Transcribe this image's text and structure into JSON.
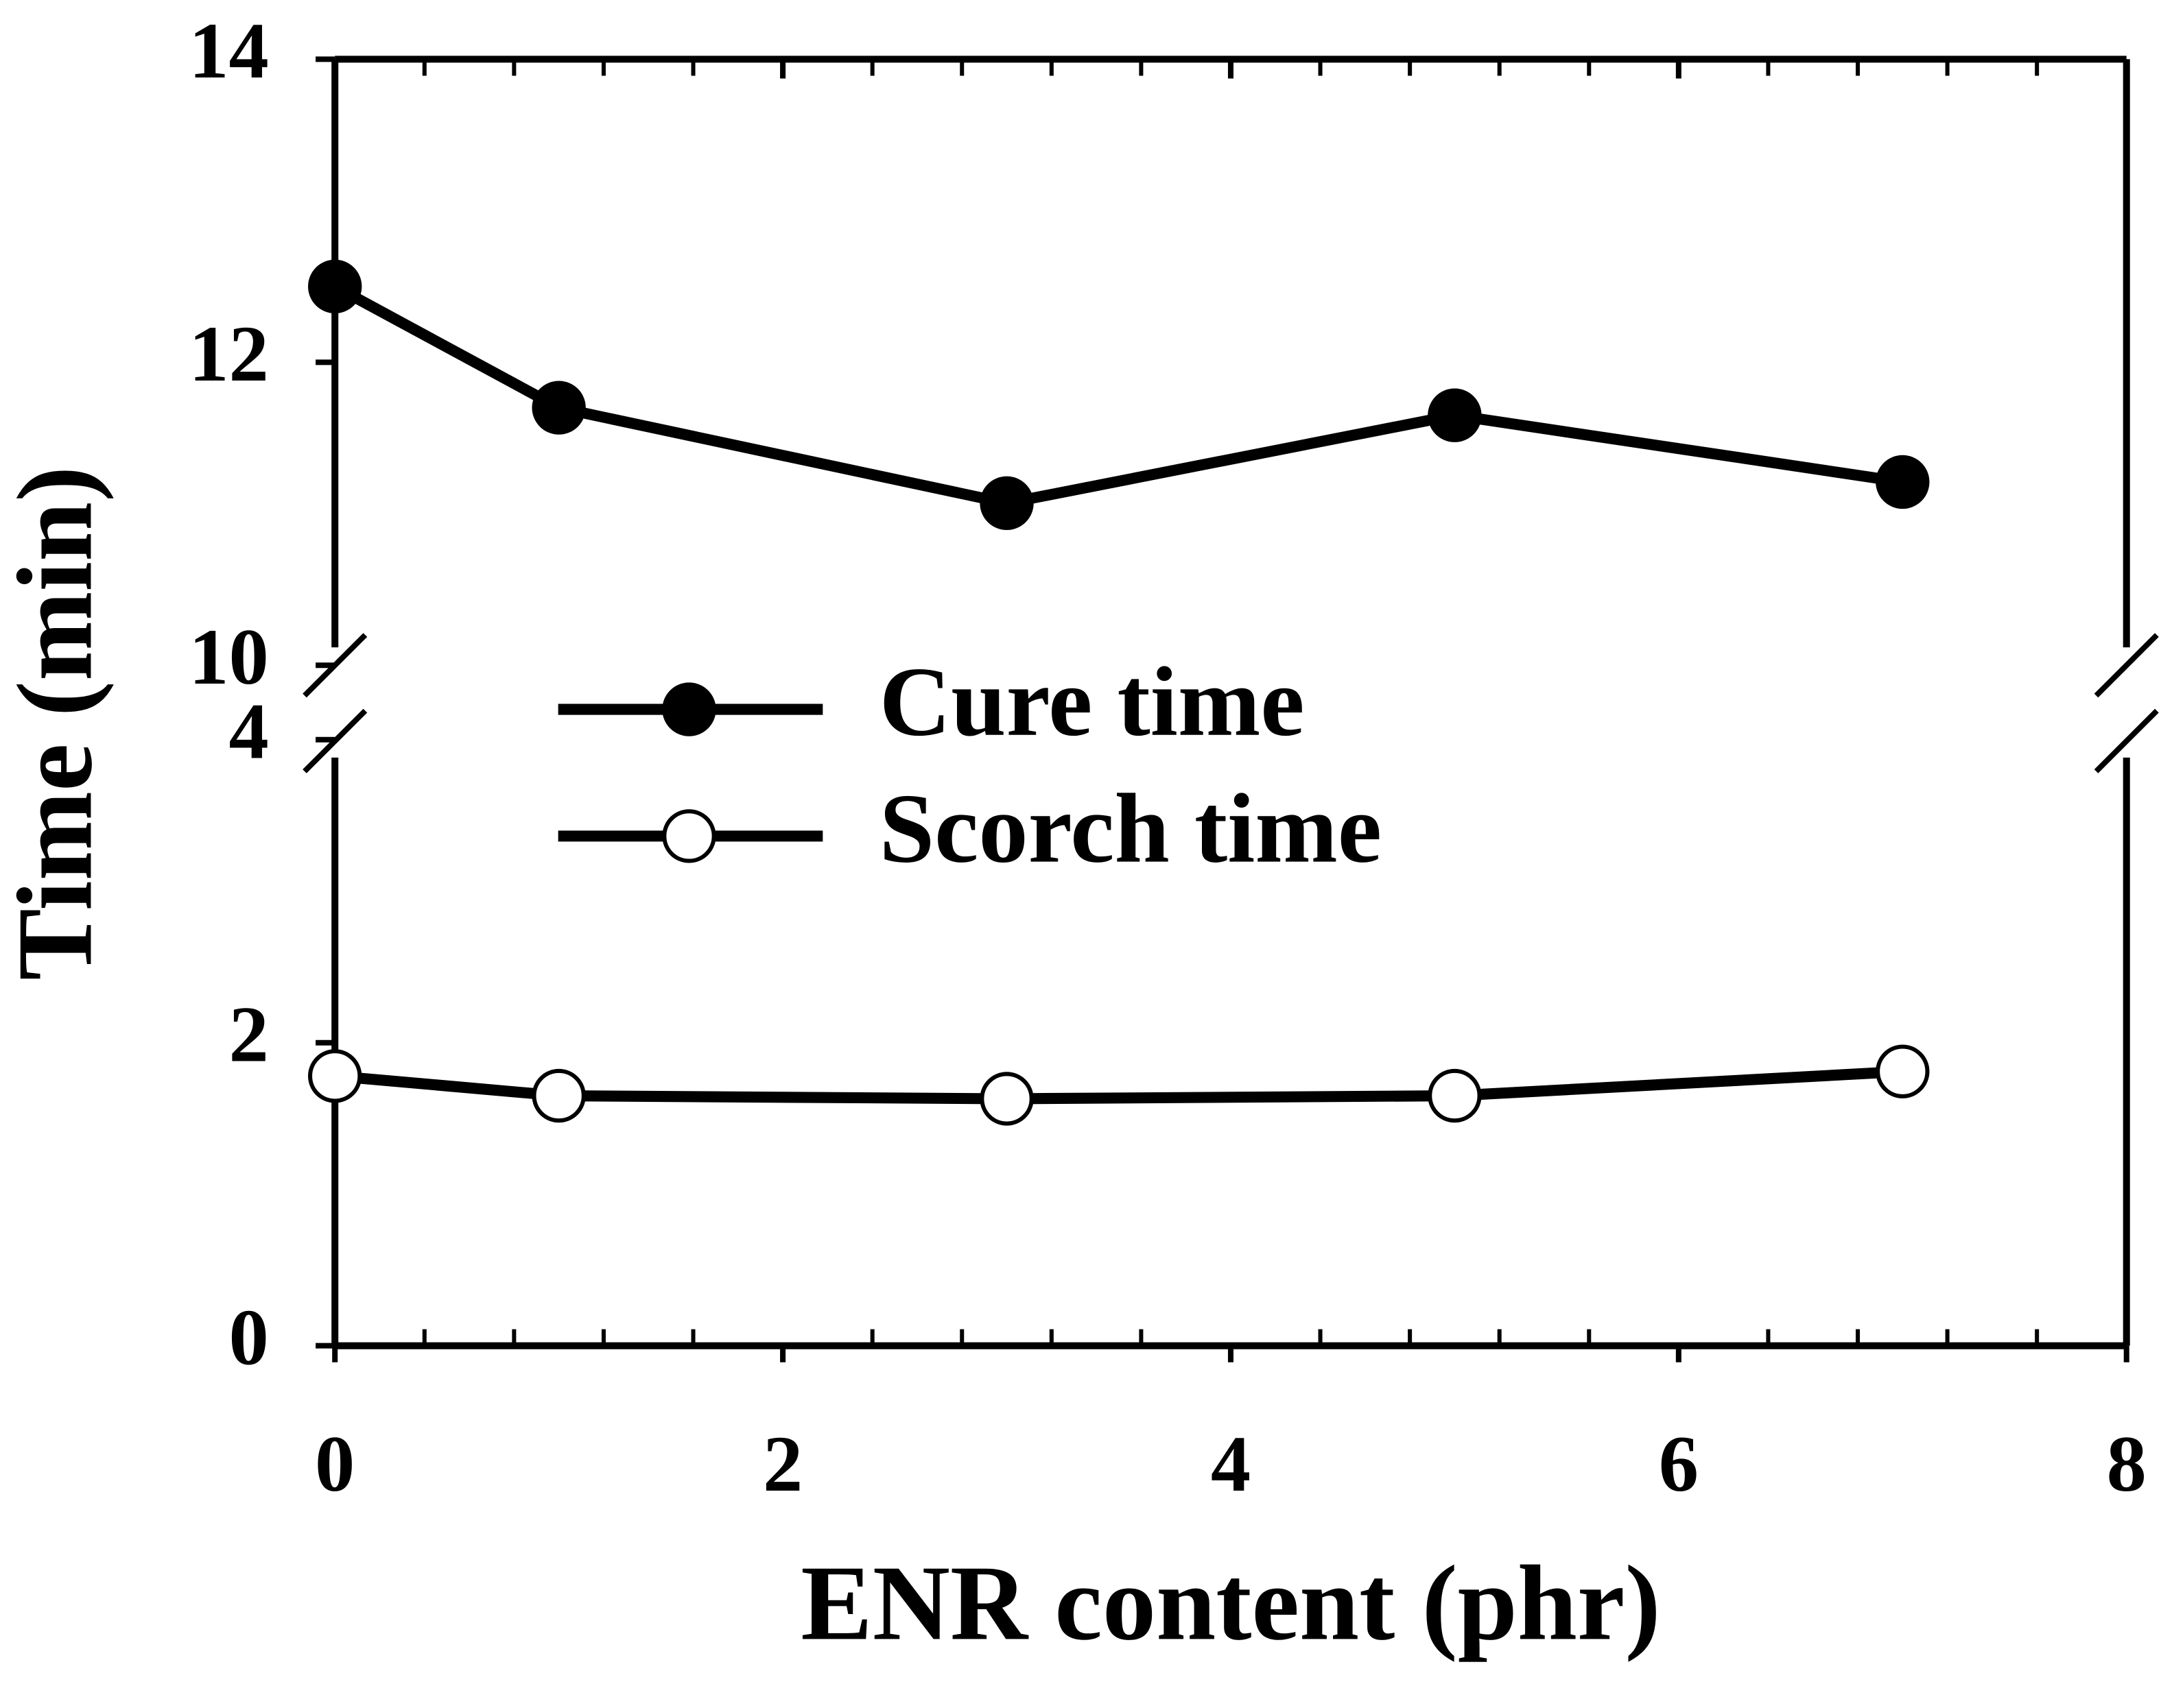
{
  "chart_data": {
    "type": "line",
    "x_label": "ENR content (phr)",
    "y_label": "Time (min)",
    "xlim": [
      0,
      8
    ],
    "xticks": [
      0,
      2,
      4,
      6,
      8
    ],
    "y_segments": [
      {
        "ylim": [
          0,
          4
        ],
        "yticks": [
          0,
          2,
          4
        ]
      },
      {
        "ylim": [
          10,
          14
        ],
        "yticks": [
          10,
          12,
          14
        ]
      }
    ],
    "x": [
      0,
      1,
      3,
      5,
      7
    ],
    "series": [
      {
        "name": "Cure time",
        "color": "#000000",
        "marker": "filled",
        "values": [
          12.5,
          11.7,
          11.07,
          11.65,
          11.21
        ]
      },
      {
        "name": "Scorch time",
        "color": "#000000",
        "marker": "open",
        "values": [
          1.78,
          1.65,
          1.63,
          1.65,
          1.81
        ]
      }
    ]
  }
}
